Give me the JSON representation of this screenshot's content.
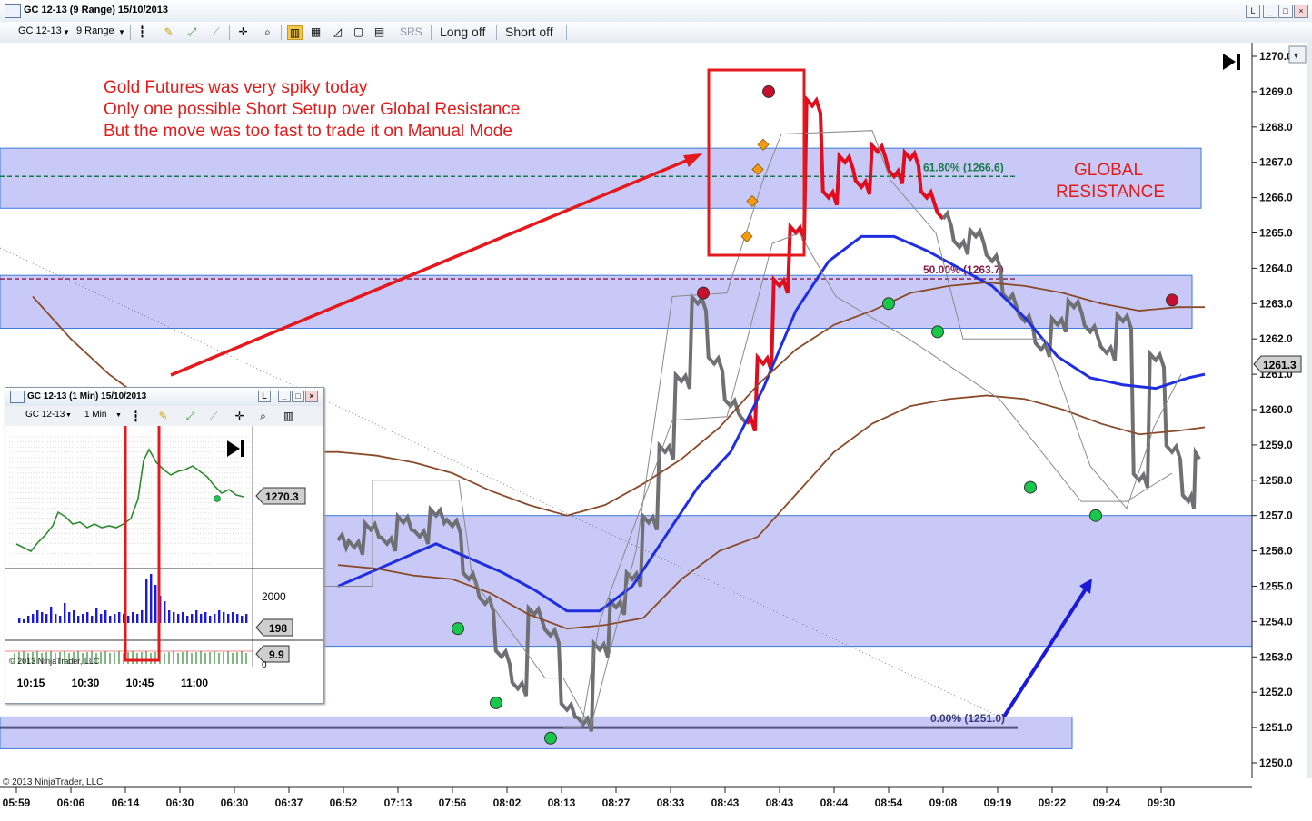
{
  "window": {
    "title": "GC 12-13 (9 Range)  15/10/2013",
    "controls": {
      "list": "L",
      "min": "_",
      "max": "□",
      "close": "×"
    }
  },
  "toolbar": {
    "instrument": "GC 12-13",
    "interval": "9 Range",
    "srs": "SRS",
    "long": "Long off",
    "short": "Short off",
    "icons": [
      "bar-style-icon",
      "pencil-icon",
      "crosshair-icon",
      "zoom-icon",
      "chart-style-icon",
      "data-box-icon",
      "properties-icon"
    ]
  },
  "annotations": {
    "line1": "Gold Futures was very spiky today",
    "line2": "Only one possible Short Setup over Global Resistance",
    "line3": "But the move was too fast to trade it on Manual Mode",
    "global1": "GLOBAL",
    "global2": "RESISTANCE",
    "fib618": "61.80% (1266.6)",
    "fib50": "50.00% (1263.7)",
    "fib0": "0.00% (1251.0)",
    "copyright": "© 2013 NinjaTrader, LLC",
    "price_marker": "1261.3"
  },
  "colors": {
    "zone": "#c8c9f6",
    "zone_border": "#3a7ad8",
    "price_gray": "#6f6f74",
    "price_red": "#e00d1f",
    "ema_blue": "#1f2fe0",
    "ma_brown": "#8a4a2a",
    "fib618": "#177a4a",
    "fib50": "#8a1a46",
    "annotation": "#e31b1b"
  },
  "chart_data": [
    {
      "type": "line",
      "title": "GC 12-13 (9 Range)  15/10/2013",
      "x_labels": [
        "05:59",
        "06:06",
        "06:14",
        "06:30",
        "06:30",
        "06:37",
        "06:52",
        "07:13",
        "07:56",
        "08:02",
        "08:13",
        "08:27",
        "08:33",
        "08:43",
        "08:43",
        "08:44",
        "08:54",
        "09:08",
        "09:19",
        "09:22",
        "09:24",
        "09:30"
      ],
      "y_ticks": [
        1270.0,
        1269.0,
        1268.0,
        1267.0,
        1266.0,
        1265.0,
        1264.0,
        1263.0,
        1262.0,
        1261.0,
        1260.0,
        1259.0,
        1258.0,
        1257.0,
        1256.0,
        1255.0,
        1254.0,
        1253.0,
        1252.0,
        1251.0,
        1250.0
      ],
      "y_tick_labels": [
        "1270.0",
        "1269.0",
        "1268.0",
        "1267.0",
        "1266.0",
        "1265.0",
        "1264.0",
        "1263.0",
        "1262.0",
        "1261.0",
        "1260.0",
        "1259.0",
        "1258.0",
        "1257.0",
        "1256.0",
        "1255.0",
        "1254.0",
        "1253.0",
        "1252.0",
        "1251.0",
        "1250.0"
      ],
      "ylim": [
        1249.5,
        1270.2
      ],
      "xlim": [
        0,
        22
      ],
      "last_price": 1261.3,
      "zones": [
        {
          "name": "global-resistance",
          "low": 1265.7,
          "high": 1267.4
        },
        {
          "name": "resistance-2",
          "low": 1262.3,
          "high": 1263.8
        },
        {
          "name": "support-1",
          "low": 1253.3,
          "high": 1257.0
        },
        {
          "name": "support-2",
          "low": 1250.4,
          "high": 1251.3
        }
      ],
      "fib_levels": [
        {
          "label": "61.80% (1266.6)",
          "value": 1266.6
        },
        {
          "label": "50.00% (1263.7)",
          "value": 1263.7
        },
        {
          "label": "0.00% (1251.0)",
          "value": 1251.0
        }
      ],
      "series": [
        {
          "name": "price",
          "x": [
            5.9,
            6.2,
            6.5,
            6.8,
            7.1,
            7.4,
            7.7,
            8.0,
            8.3,
            8.6,
            8.9,
            9.2,
            9.5,
            9.8,
            10.1,
            10.4,
            10.7,
            11.0,
            11.3,
            11.6,
            11.9,
            12.2,
            12.5,
            12.8,
            13.1,
            13.4,
            13.7,
            14.0,
            14.3,
            14.6,
            14.9,
            15.2,
            15.5,
            15.8,
            16.1,
            16.4,
            16.7,
            17.0,
            17.3,
            17.6,
            17.9,
            18.2,
            18.5,
            18.8,
            19.1,
            19.4,
            19.7,
            20.0,
            20.3,
            20.6,
            20.9,
            21.2,
            21.5,
            21.7
          ],
          "y": [
            1256.3,
            1256.1,
            1256.6,
            1256.2,
            1256.8,
            1256.4,
            1257.0,
            1256.7,
            1255.2,
            1254.5,
            1253.0,
            1252.1,
            1254.2,
            1253.6,
            1251.5,
            1251.1,
            1253.2,
            1254.4,
            1255.2,
            1256.8,
            1258.8,
            1260.8,
            1263.0,
            1261.3,
            1260.1,
            1259.6,
            1261.3,
            1263.5,
            1265.0,
            1268.6,
            1266.0,
            1267.0,
            1266.3,
            1267.3,
            1266.6,
            1267.1,
            1266.0,
            1265.4,
            1264.6,
            1264.9,
            1264.2,
            1263.1,
            1262.5,
            1261.7,
            1262.4,
            1262.9,
            1262.2,
            1261.6,
            1262.5,
            1258.0,
            1261.4,
            1258.8,
            1257.4,
            1258.6
          ]
        },
        {
          "name": "ema",
          "x": [
            5.9,
            6.5,
            7.1,
            7.7,
            8.3,
            8.9,
            9.5,
            10.1,
            10.7,
            11.3,
            11.9,
            12.5,
            13.1,
            13.7,
            14.3,
            14.9,
            15.5,
            16.1,
            16.7,
            17.3,
            17.9,
            18.5,
            19.1,
            19.7,
            20.3,
            20.9,
            21.5,
            21.8
          ],
          "y": [
            1255.0,
            1255.4,
            1255.8,
            1256.2,
            1255.8,
            1255.4,
            1254.9,
            1254.3,
            1254.3,
            1255.0,
            1256.4,
            1257.8,
            1258.8,
            1260.6,
            1262.8,
            1264.2,
            1264.9,
            1264.9,
            1264.5,
            1264.0,
            1263.5,
            1262.6,
            1261.5,
            1260.9,
            1260.7,
            1260.6,
            1260.9,
            1261.0
          ]
        },
        {
          "name": "ma-long",
          "x": [
            0.3,
            1.0,
            1.7,
            2.4,
            3.1,
            3.8,
            4.5,
            5.2,
            5.9,
            6.6,
            7.3,
            8.0,
            8.7,
            9.4,
            10.1,
            10.8,
            11.5,
            12.2,
            12.9,
            13.6,
            14.3,
            15.0,
            15.7,
            16.4,
            17.1,
            17.8,
            18.5,
            19.2,
            19.9,
            20.6,
            21.3,
            21.8
          ],
          "y": [
            1263.2,
            1262.0,
            1261.0,
            1260.2,
            1259.6,
            1259.2,
            1258.9,
            1258.8,
            1258.8,
            1258.7,
            1258.5,
            1258.2,
            1257.7,
            1257.3,
            1257.0,
            1257.3,
            1257.9,
            1258.6,
            1259.5,
            1260.7,
            1261.7,
            1262.4,
            1262.8,
            1263.3,
            1263.5,
            1263.6,
            1263.5,
            1263.3,
            1263.0,
            1262.8,
            1262.9,
            1262.9
          ]
        },
        {
          "name": "ma-mid",
          "x": [
            5.9,
            6.6,
            7.3,
            8.0,
            8.7,
            9.4,
            10.1,
            10.8,
            11.5,
            12.2,
            12.9,
            13.6,
            14.3,
            15.0,
            15.7,
            16.4,
            17.1,
            17.8,
            18.5,
            19.2,
            19.9,
            20.6,
            21.3,
            21.8
          ],
          "y": [
            1255.6,
            1255.5,
            1255.3,
            1255.2,
            1254.8,
            1254.2,
            1253.8,
            1253.9,
            1254.1,
            1255.2,
            1256.0,
            1256.4,
            1257.6,
            1258.8,
            1259.6,
            1260.1,
            1260.3,
            1260.4,
            1260.3,
            1260.0,
            1259.6,
            1259.3,
            1259.4,
            1259.5
          ]
        }
      ],
      "swing_highs": [
        {
          "x": 12.6,
          "y": 1263.3
        },
        {
          "x": 13.8,
          "y": 1269.0
        },
        {
          "x": 21.2,
          "y": 1263.1
        }
      ],
      "swing_lows": [
        {
          "x": 8.1,
          "y": 1253.8
        },
        {
          "x": 8.8,
          "y": 1251.7
        },
        {
          "x": 9.8,
          "y": 1250.7
        },
        {
          "x": 16.0,
          "y": 1263.0
        },
        {
          "x": 16.9,
          "y": 1262.2
        },
        {
          "x": 18.6,
          "y": 1257.8
        },
        {
          "x": 19.8,
          "y": 1257.0
        }
      ],
      "entry_markers": [
        {
          "x": 13.4,
          "y": 1264.9
        },
        {
          "x": 13.5,
          "y": 1265.9
        },
        {
          "x": 13.6,
          "y": 1266.8
        },
        {
          "x": 13.7,
          "y": 1267.5
        }
      ]
    },
    {
      "type": "line",
      "title": "GC 12-13 (1 Min)  15/10/2013",
      "x_labels": [
        "10:15",
        "10:30",
        "10:45",
        "11:00"
      ],
      "last_price": "1270.3",
      "volume_label": "2000",
      "volume_last": "198",
      "indicator_last": "9.9",
      "indicator_zero": "0",
      "copyright": "© 2013 NinjaTrader, LLC"
    }
  ],
  "inset": {
    "title": "GC 12-13 (1 Min)  15/10/2013",
    "instrument": "GC 12-13",
    "interval": "1 Min"
  }
}
